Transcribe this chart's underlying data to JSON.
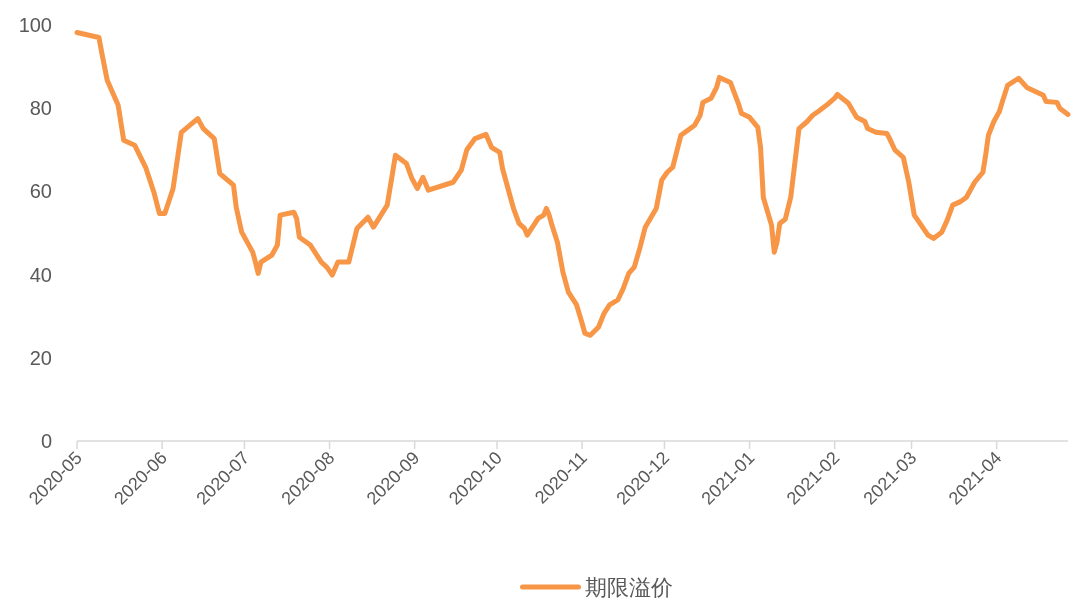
{
  "chart_data": {
    "type": "line",
    "x": [
      "2020-05-01",
      "2020-05-09",
      "2020-05-10",
      "2020-05-12",
      "2020-05-16",
      "2020-05-18",
      "2020-05-22",
      "2020-05-26",
      "2020-05-29",
      "2020-05-31",
      "2020-06-02",
      "2020-06-05",
      "2020-06-08",
      "2020-06-14",
      "2020-06-16",
      "2020-06-20",
      "2020-06-22",
      "2020-06-27",
      "2020-06-28",
      "2020-06-30",
      "2020-07-04",
      "2020-07-05",
      "2020-07-06",
      "2020-07-07",
      "2020-07-11",
      "2020-07-13",
      "2020-07-14",
      "2020-07-19",
      "2020-07-20",
      "2020-07-21",
      "2020-07-25",
      "2020-07-29",
      "2020-07-31",
      "2020-08-02",
      "2020-08-04",
      "2020-08-08",
      "2020-08-11",
      "2020-08-15",
      "2020-08-17",
      "2020-08-22",
      "2020-08-24",
      "2020-08-25",
      "2020-08-29",
      "2020-08-31",
      "2020-09-02",
      "2020-09-04",
      "2020-09-06",
      "2020-09-15",
      "2020-09-18",
      "2020-09-20",
      "2020-09-23",
      "2020-09-27",
      "2020-09-29",
      "2020-10-02",
      "2020-10-03",
      "2020-10-07",
      "2020-10-09",
      "2020-10-11",
      "2020-10-12",
      "2020-10-16",
      "2020-10-18",
      "2020-10-19",
      "2020-10-20",
      "2020-10-21",
      "2020-10-23",
      "2020-10-25",
      "2020-10-27",
      "2020-10-30",
      "2020-11-01",
      "2020-11-02",
      "2020-11-04",
      "2020-11-07",
      "2020-11-09",
      "2020-11-11",
      "2020-11-14",
      "2020-11-16",
      "2020-11-18",
      "2020-11-20",
      "2020-11-22",
      "2020-11-24",
      "2020-11-28",
      "2020-11-30",
      "2020-12-02",
      "2020-12-04",
      "2020-12-07",
      "2020-12-12",
      "2020-12-14",
      "2020-12-15",
      "2020-12-18",
      "2020-12-20",
      "2020-12-21",
      "2020-12-25",
      "2020-12-28",
      "2020-12-29",
      "2021-01-01",
      "2021-01-04",
      "2021-01-05",
      "2021-01-06",
      "2021-01-09",
      "2021-01-10",
      "2021-01-11",
      "2021-01-12",
      "2021-01-14",
      "2021-01-16",
      "2021-01-19",
      "2021-01-22",
      "2021-01-24",
      "2021-01-26",
      "2021-01-29",
      "2021-02-01",
      "2021-02-02",
      "2021-02-06",
      "2021-02-09",
      "2021-02-12",
      "2021-02-13",
      "2021-02-16",
      "2021-02-20",
      "2021-02-21",
      "2021-02-23",
      "2021-02-26",
      "2021-02-28",
      "2021-03-02",
      "2021-03-05",
      "2021-03-07",
      "2021-03-09",
      "2021-03-12",
      "2021-03-14",
      "2021-03-16",
      "2021-03-19",
      "2021-03-21",
      "2021-03-24",
      "2021-03-27",
      "2021-03-28",
      "2021-03-29",
      "2021-03-31",
      "2021-04-02",
      "2021-04-03",
      "2021-04-05",
      "2021-04-09",
      "2021-04-12",
      "2021-04-18",
      "2021-04-19",
      "2021-04-23",
      "2021-04-24",
      "2021-04-27"
    ],
    "series": [
      {
        "name": "期限溢价",
        "color": "#f79646",
        "values": [
          98.2,
          97.0,
          93.4,
          86.7,
          80.7,
          72.3,
          71.1,
          65.8,
          59.8,
          54.7,
          54.7,
          60.7,
          74.2,
          77.5,
          75.1,
          72.7,
          64.3,
          61.5,
          56.2,
          50.2,
          45.4,
          43.0,
          40.3,
          43.0,
          44.7,
          47.1,
          54.3,
          55.0,
          53.5,
          49.0,
          47.1,
          43.0,
          41.8,
          39.9,
          43.0,
          43.0,
          51.1,
          53.8,
          51.4,
          56.7,
          64.6,
          68.7,
          66.7,
          63.1,
          60.7,
          63.4,
          60.3,
          62.2,
          65.1,
          70.0,
          72.7,
          73.7,
          70.6,
          69.4,
          65.5,
          55.9,
          52.3,
          51.1,
          49.5,
          53.5,
          54.3,
          55.9,
          54.3,
          51.9,
          47.8,
          40.6,
          35.8,
          32.7,
          28.3,
          25.9,
          25.4,
          27.4,
          30.7,
          32.7,
          33.9,
          36.7,
          40.3,
          41.8,
          46.3,
          51.4,
          55.9,
          62.7,
          64.6,
          65.8,
          73.5,
          75.9,
          78.3,
          81.4,
          82.4,
          85.0,
          87.4,
          86.2,
          81.0,
          78.8,
          77.8,
          75.4,
          70.6,
          58.6,
          51.9,
          45.4,
          47.8,
          52.3,
          53.3,
          58.6,
          75.1,
          76.8,
          78.3,
          79.2,
          80.7,
          82.4,
          83.3,
          81.2,
          77.8,
          76.8,
          75.1,
          74.2,
          73.9,
          72.7,
          69.9,
          68.2,
          62.2,
          54.3,
          51.4,
          49.5,
          48.7,
          50.2,
          53.1,
          56.7,
          57.6,
          58.6,
          62.2,
          64.6,
          68.7,
          73.5,
          76.8,
          79.2,
          81.4,
          85.5,
          87.2,
          85.0,
          83.1,
          81.6,
          81.4,
          80.0,
          78.5
        ]
      }
    ],
    "xlim": [
      "2020-05-01",
      "2021-04-27"
    ],
    "xticks": [
      "2020-05",
      "2020-06",
      "2020-07",
      "2020-08",
      "2020-09",
      "2020-10",
      "2020-11",
      "2020-12",
      "2021-01",
      "2021-02",
      "2021-03",
      "2021-04"
    ],
    "ylim": [
      0,
      100
    ],
    "yticks": [
      0,
      20,
      40,
      60,
      80,
      100
    ],
    "legend": "bottom"
  }
}
